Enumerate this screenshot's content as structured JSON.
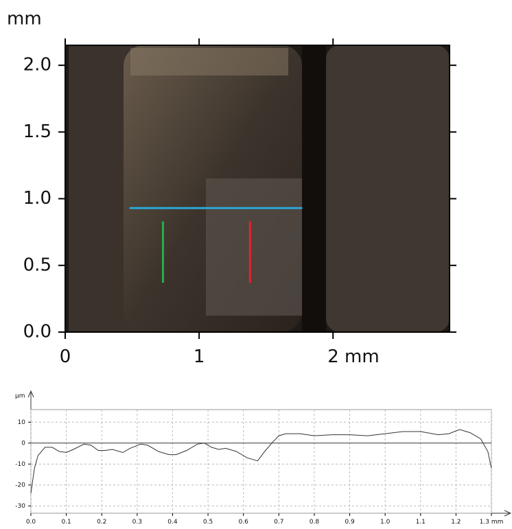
{
  "chart_data": [
    {
      "type": "image",
      "ylabel": "mm",
      "xlim": [
        0,
        2.87
      ],
      "ylim": [
        0,
        2.15
      ],
      "xticks": [
        0,
        1,
        {
          "value": 2,
          "label": "2 mm"
        }
      ],
      "yticks": [
        {
          "value": 0,
          "label": "0.0"
        },
        {
          "value": 0.5,
          "label": "0.5"
        },
        {
          "value": 1,
          "label": "1.0"
        },
        {
          "value": 1.5,
          "label": "1.5"
        },
        {
          "value": 2,
          "label": "2.0"
        }
      ],
      "segments": [
        {
          "color": "#2aa8d6",
          "x": [
            0.48,
            1.77
          ],
          "y": [
            0.93,
            0.93
          ]
        },
        {
          "color": "#22b14c",
          "x": [
            0.73,
            0.73
          ],
          "y": [
            0.83,
            0.37
          ]
        },
        {
          "color": "#e8222a",
          "x": [
            1.38,
            1.38
          ],
          "y": [
            0.83,
            0.37
          ]
        }
      ]
    },
    {
      "type": "line",
      "ylabel": "µm",
      "grid": true,
      "xlim": [
        0,
        1.3
      ],
      "ylim": [
        -33.5,
        16
      ],
      "xticks": [
        {
          "value": 0,
          "label": "0.0"
        },
        {
          "value": 0.1,
          "label": "0.1"
        },
        {
          "value": 0.2,
          "label": "0.2"
        },
        {
          "value": 0.3,
          "label": "0.3"
        },
        {
          "value": 0.4,
          "label": "0.4"
        },
        {
          "value": 0.5,
          "label": "0.5"
        },
        {
          "value": 0.6,
          "label": "0.6"
        },
        {
          "value": 0.7,
          "label": "0.7"
        },
        {
          "value": 0.8,
          "label": "0.8"
        },
        {
          "value": 0.9,
          "label": "0.9"
        },
        {
          "value": 1,
          "label": "1.0"
        },
        {
          "value": 1.1,
          "label": "1.1"
        },
        {
          "value": 1.2,
          "label": "1.2"
        },
        {
          "value": 1.3,
          "label": "1.3 mm"
        }
      ],
      "yticks": [
        -30,
        -20,
        -10,
        0,
        10
      ],
      "color": "#333333",
      "x": [
        0,
        0.01,
        0.02,
        0.04,
        0.06,
        0.08,
        0.1,
        0.12,
        0.15,
        0.17,
        0.19,
        0.21,
        0.23,
        0.26,
        0.28,
        0.31,
        0.33,
        0.36,
        0.39,
        0.41,
        0.44,
        0.47,
        0.49,
        0.51,
        0.53,
        0.55,
        0.58,
        0.61,
        0.64,
        0.66,
        0.68,
        0.7,
        0.72,
        0.76,
        0.8,
        0.85,
        0.9,
        0.95,
        1,
        1.05,
        1.1,
        1.15,
        1.18,
        1.21,
        1.24,
        1.27,
        1.29,
        1.3
      ],
      "values": [
        -24,
        -12,
        -6,
        -2,
        -2,
        -4,
        -4.5,
        -3,
        -0.5,
        -1,
        -3.5,
        -3.5,
        -3,
        -4.5,
        -2.5,
        -0.5,
        -1,
        -4,
        -5.5,
        -5.5,
        -3.5,
        -0.5,
        0,
        -2,
        -3,
        -2.5,
        -4,
        -7,
        -8.5,
        -4,
        0,
        3.5,
        4.5,
        4.5,
        3.5,
        4,
        4,
        3.5,
        4.5,
        5.5,
        5.5,
        4,
        4.5,
        6.5,
        5,
        2,
        -4,
        -12
      ]
    }
  ]
}
